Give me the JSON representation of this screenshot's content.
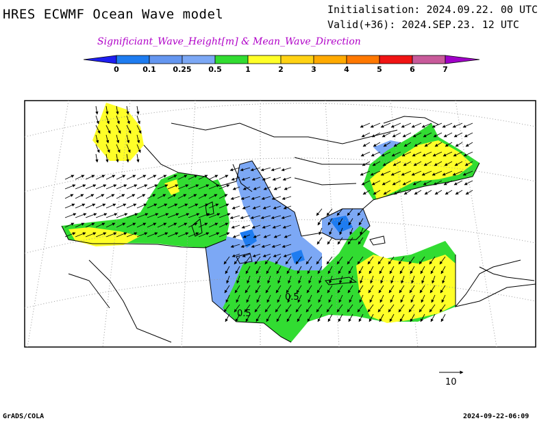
{
  "header": {
    "title": "HRES ECWMF Ocean Wave model",
    "initialisation": "Initialisation: 2024.09.22. 00 UTC",
    "valid": "Valid(+36): 2024.SEP.23. 12 UTC",
    "subtitle": "Significiant_Wave_Height[m] & Mean_Wave_Direction"
  },
  "colorbar": {
    "labels": [
      "0",
      "0.1",
      "0.25",
      "0.5",
      "1",
      "2",
      "3",
      "4",
      "5",
      "6",
      "7"
    ],
    "colors": [
      "#1e1ef0",
      "#1e7cf0",
      "#6496f0",
      "#7ca8f5",
      "#32dc32",
      "#ffff28",
      "#ffd214",
      "#ffaa00",
      "#ff7800",
      "#f01414",
      "#c85a9a",
      "#a000c8"
    ],
    "end_colors": {
      "low": "#1e1ef0",
      "high": "#a000c8"
    }
  },
  "map": {
    "contour_labels": [
      "0.5",
      "0.5"
    ],
    "colors": {
      "sea_low": "#7ca8f5",
      "sea_mid": "#32dc32",
      "sea_high": "#ffff28",
      "sea_very_low": "#1e7cf0",
      "coast": "#000000",
      "grid": "#9a9a9a"
    }
  },
  "vector_legend": {
    "label": "10"
  },
  "footer": {
    "left": "GrADS/COLA",
    "right": "2024-09-22-06:09"
  }
}
